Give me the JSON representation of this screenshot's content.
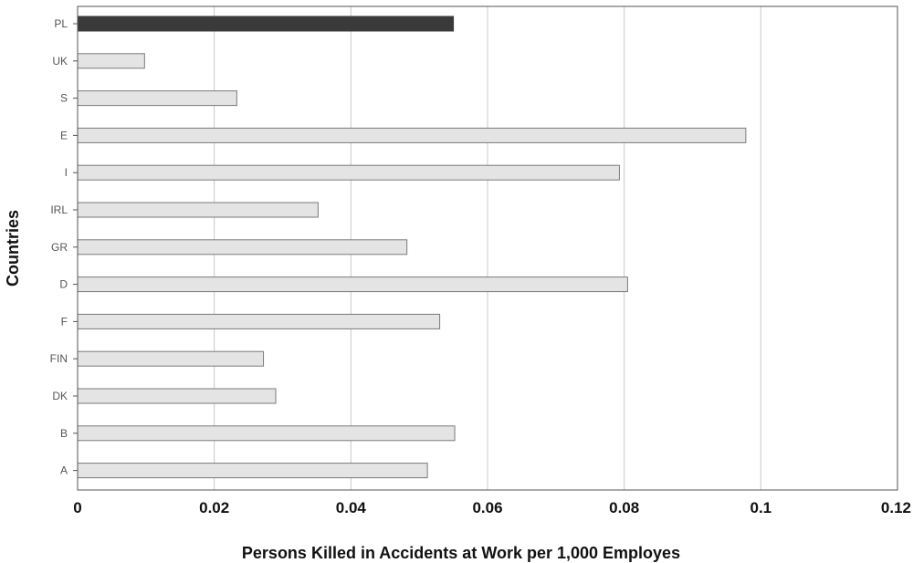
{
  "chart_data": {
    "type": "bar",
    "orientation": "horizontal",
    "categories": [
      "PL",
      "UK",
      "S",
      "E",
      "I",
      "IRL",
      "GR",
      "D",
      "F",
      "FIN",
      "DK",
      "B",
      "A"
    ],
    "values": [
      0.055,
      0.0098,
      0.0233,
      0.0978,
      0.0793,
      0.0352,
      0.0482,
      0.0805,
      0.053,
      0.0272,
      0.029,
      0.0552,
      0.0512
    ],
    "highlight_category": "PL",
    "xlabel": "Persons Killed in Accidents at Work per 1,000 Employes",
    "ylabel": "Countries",
    "xlim": [
      0,
      0.12
    ],
    "xticks": [
      "0",
      "0.02",
      "0.04",
      "0.06",
      "0.08",
      "0.1",
      "0.12"
    ],
    "grid": "vertical",
    "colors": {
      "bar_fill": "#e4e4e4",
      "bar_stroke": "#7a7a7a",
      "highlight_fill": "#3a3a3a",
      "gridline": "#c8c8c8",
      "frame": "#555555"
    }
  }
}
